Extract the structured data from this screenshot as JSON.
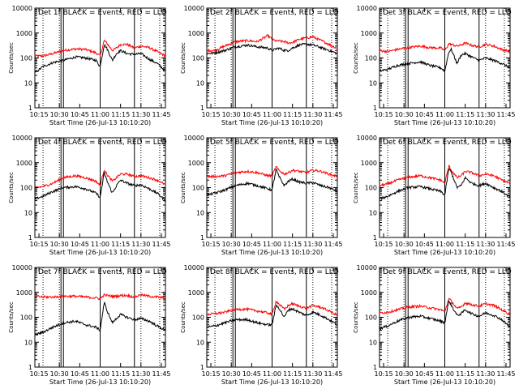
{
  "chart_data": {
    "type": "line",
    "x_tick_labels": [
      "10:15",
      "10:30",
      "10:45",
      "11:00",
      "11:15",
      "11:30",
      "11:45"
    ],
    "x_tick_hours": [
      10.25,
      10.5,
      10.75,
      11.0,
      11.25,
      11.5,
      11.75
    ],
    "x_range_hours": [
      10.2,
      11.8
    ],
    "xlabel": "Start Time (26-Jul-13 10:10:20)",
    "ylabel": "Counts/sec",
    "y_scale": "log",
    "ylim": [
      1,
      10000
    ],
    "y_tick_labels": [
      "1",
      "10",
      "100",
      "1000",
      "10000"
    ],
    "series_colors": {
      "events": "#000000",
      "lld": "#ff0000"
    },
    "dotted_lines_hours": [
      10.3,
      10.5,
      11.5,
      11.73
    ],
    "solid_lines_hours": [
      10.52,
      10.55,
      11.0,
      11.42
    ],
    "knots_hours": [
      10.2,
      10.3,
      10.42,
      10.55,
      10.7,
      10.82,
      10.95,
      11.0,
      11.05,
      11.08,
      11.15,
      11.2,
      11.25,
      11.33,
      11.42,
      11.5,
      11.6,
      11.7,
      11.8
    ],
    "panels": [
      {
        "title": "Det 1f BLACK = Events, RED = LLD",
        "events": [
          25,
          45,
          65,
          80,
          110,
          100,
          80,
          45,
          350,
          250,
          80,
          150,
          200,
          150,
          140,
          150,
          90,
          60,
          30
        ],
        "lld": [
          120,
          120,
          150,
          200,
          230,
          220,
          160,
          120,
          500,
          400,
          200,
          250,
          350,
          350,
          250,
          300,
          260,
          180,
          120
        ]
      },
      {
        "title": "Det 2f BLACK = Events, RED = LLD",
        "events": [
          150,
          160,
          200,
          280,
          330,
          280,
          250,
          200,
          230,
          250,
          200,
          200,
          250,
          330,
          360,
          330,
          260,
          200,
          150
        ],
        "lld": [
          200,
          200,
          300,
          450,
          500,
          450,
          800,
          550,
          480,
          480,
          450,
          400,
          420,
          550,
          650,
          700,
          500,
          350,
          240
        ]
      },
      {
        "title": "Det 3f BLACK = Events, RED = LLD",
        "events": [
          30,
          35,
          50,
          60,
          70,
          50,
          40,
          30,
          180,
          220,
          60,
          130,
          150,
          110,
          80,
          100,
          80,
          60,
          40
        ],
        "lld": [
          200,
          180,
          220,
          260,
          300,
          260,
          250,
          200,
          370,
          350,
          300,
          330,
          400,
          320,
          280,
          350,
          300,
          220,
          180
        ]
      },
      {
        "title": "Det 4f BLACK = Events, RED = LLD",
        "events": [
          35,
          45,
          70,
          100,
          110,
          90,
          60,
          40,
          400,
          200,
          60,
          120,
          200,
          150,
          120,
          130,
          90,
          60,
          30
        ],
        "lld": [
          100,
          110,
          150,
          250,
          300,
          250,
          180,
          120,
          550,
          350,
          180,
          250,
          350,
          350,
          280,
          300,
          250,
          200,
          130
        ]
      },
      {
        "title": "Det 5f BLACK = Events, RED = LLD",
        "events": [
          50,
          60,
          80,
          120,
          150,
          120,
          90,
          80,
          550,
          300,
          120,
          180,
          220,
          170,
          150,
          160,
          120,
          100,
          70
        ],
        "lld": [
          280,
          280,
          300,
          400,
          450,
          400,
          300,
          300,
          700,
          500,
          350,
          400,
          500,
          450,
          400,
          500,
          450,
          350,
          280
        ]
      },
      {
        "title": "Det 6f BLACK = Events, RED = LLD",
        "events": [
          35,
          45,
          70,
          100,
          110,
          90,
          70,
          50,
          600,
          400,
          100,
          120,
          250,
          150,
          120,
          150,
          100,
          70,
          40
        ],
        "lld": [
          120,
          140,
          200,
          260,
          300,
          250,
          200,
          150,
          750,
          500,
          250,
          300,
          450,
          400,
          300,
          350,
          300,
          200,
          150
        ]
      },
      {
        "title": "Det 7f BLACK = Events, RED = LLD",
        "events": [
          20,
          25,
          40,
          60,
          70,
          50,
          40,
          30,
          400,
          200,
          60,
          90,
          130,
          100,
          80,
          90,
          70,
          45,
          30
        ],
        "lld": [
          700,
          650,
          650,
          700,
          700,
          650,
          600,
          550,
          800,
          750,
          700,
          700,
          750,
          750,
          650,
          800,
          700,
          650,
          600
        ]
      },
      {
        "title": "Det 8f BLACK = Events, RED = LLD",
        "events": [
          40,
          45,
          60,
          80,
          80,
          60,
          50,
          50,
          300,
          250,
          100,
          200,
          220,
          160,
          120,
          160,
          120,
          80,
          50
        ],
        "lld": [
          130,
          140,
          160,
          210,
          210,
          180,
          150,
          130,
          450,
          350,
          210,
          300,
          350,
          280,
          230,
          300,
          250,
          180,
          120
        ]
      },
      {
        "title": "Det 9f BLACK = Events, RED = LLD",
        "events": [
          35,
          45,
          70,
          100,
          110,
          90,
          70,
          60,
          480,
          300,
          120,
          140,
          200,
          140,
          110,
          150,
          120,
          80,
          40
        ],
        "lld": [
          150,
          160,
          200,
          260,
          280,
          240,
          200,
          170,
          550,
          450,
          220,
          260,
          380,
          320,
          280,
          350,
          300,
          200,
          130
        ]
      }
    ]
  }
}
